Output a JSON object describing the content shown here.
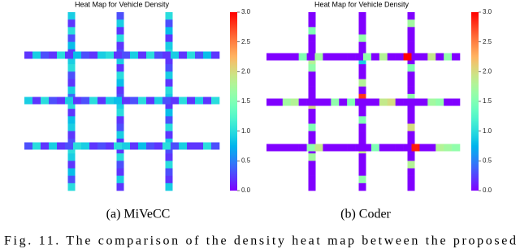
{
  "chart_data": [
    {
      "type": "heatmap",
      "title": "Heat Map for Vehicle Density",
      "caption": "(a) MiVeCC",
      "colormap": "rainbow",
      "zlim": [
        0,
        3
      ],
      "zticks": [
        {
          "value": 0,
          "label": "0.0"
        },
        {
          "value": 0.5,
          "label": "0.5"
        },
        {
          "value": 1,
          "label": "1.0"
        },
        {
          "value": 1.5,
          "label": "1.5"
        },
        {
          "value": 2,
          "label": "2.0"
        },
        {
          "value": 2.5,
          "label": "2.5"
        },
        {
          "value": 3,
          "label": "3.0"
        }
      ],
      "vertical_roads": [
        [
          0.9,
          0.2,
          1.0,
          0.3,
          0.8,
          0.2,
          0.9,
          1.0,
          0.3,
          0.2,
          0.9,
          0.4,
          1.0,
          0.2,
          0.8,
          0.9,
          0.2,
          0.3,
          1.0,
          0.9,
          0.2,
          0.8,
          0.3,
          1.0
        ],
        [
          0.3,
          0.9,
          0.2,
          1.0,
          0.2,
          0.3,
          0.9,
          0.2,
          1.0,
          0.8,
          0.2,
          0.3,
          0.9,
          1.0,
          0.2,
          0.3,
          0.9,
          0.2,
          0.2,
          1.0,
          0.3,
          0.2,
          0.9,
          0.2
        ],
        [
          1.0,
          0.3,
          0.8,
          0.2,
          0.9,
          1.0,
          0.2,
          0.3,
          0.9,
          0.2,
          1.0,
          0.9,
          0.2,
          0.8,
          0.3,
          1.0,
          0.2,
          0.9,
          0.3,
          0.2,
          1.0,
          0.3,
          0.2,
          0.9
        ]
      ],
      "horizontal_roads": [
        [
          0.2,
          0.9,
          0.3,
          0.2,
          1.0,
          0.2,
          0.8,
          0.3,
          0.2,
          0.9,
          1.0,
          0.2,
          0.3,
          0.9,
          0.2,
          1.0,
          0.3,
          0.2,
          0.9,
          0.2,
          1.0,
          0.3,
          0.8,
          0.2
        ],
        [
          0.9,
          0.2,
          1.0,
          0.3,
          0.2,
          0.9,
          0.2,
          0.3,
          1.0,
          0.2,
          0.9,
          0.8,
          0.2,
          0.3,
          1.0,
          0.2,
          0.9,
          0.3,
          0.2,
          1.0,
          0.2,
          0.9,
          0.2,
          1.0
        ],
        [
          0.3,
          1.0,
          0.2,
          0.9,
          0.2,
          0.3,
          1.0,
          0.9,
          0.2,
          0.3,
          0.2,
          1.0,
          0.9,
          0.2,
          0.8,
          0.3,
          0.2,
          1.0,
          0.3,
          0.9,
          0.2,
          0.2,
          1.0,
          0.3
        ]
      ]
    },
    {
      "type": "heatmap",
      "title": "Heat Map for Vehicle Density",
      "caption": "(b) Coder",
      "colormap": "rainbow",
      "zlim": [
        0,
        3
      ],
      "zticks": [
        {
          "value": 0,
          "label": "0.0"
        },
        {
          "value": 0.5,
          "label": "0.5"
        },
        {
          "value": 1,
          "label": "1.0"
        },
        {
          "value": 1.5,
          "label": "1.5"
        },
        {
          "value": 2,
          "label": "2.0"
        },
        {
          "value": 2.5,
          "label": "2.5"
        },
        {
          "value": 3,
          "label": "3.0"
        }
      ],
      "vertical_roads": [
        [
          0,
          0,
          1.5,
          0,
          0,
          0,
          1.8,
          1.6,
          0,
          0,
          0,
          0,
          2.0,
          0,
          0,
          1.5,
          0,
          0,
          0,
          1.7,
          0,
          0,
          0,
          0
        ],
        [
          0,
          0,
          0,
          1.6,
          0,
          0,
          0.9,
          0,
          0,
          1.8,
          0,
          2.8,
          0,
          0,
          1.5,
          0,
          0,
          0,
          1.9,
          0,
          0,
          0,
          1.6,
          0
        ],
        [
          0,
          1.7,
          0,
          0,
          0,
          0,
          0,
          1.5,
          0,
          0,
          0,
          1.6,
          0,
          0,
          0,
          2.0,
          0,
          0,
          0,
          0,
          1.8,
          0,
          0,
          0
        ]
      ],
      "horizontal_roads": [
        [
          0,
          0,
          0,
          0,
          1.5,
          0,
          1.7,
          0,
          0,
          0,
          0,
          0,
          1.6,
          0,
          1.8,
          0,
          0,
          3.0,
          0,
          0,
          1.9,
          0,
          1.6,
          0
        ],
        [
          0,
          0,
          1.7,
          1.8,
          0,
          0,
          0,
          0,
          1.6,
          0,
          1.5,
          0,
          0,
          0,
          1.9,
          2.0,
          0,
          0,
          0,
          0,
          1.7,
          1.6,
          0,
          0
        ],
        [
          0,
          0,
          0,
          0,
          0,
          1.6,
          1.9,
          0,
          0,
          0,
          0,
          0,
          0,
          1.5,
          0,
          0,
          0,
          0,
          2.9,
          0,
          0,
          1.8,
          1.7,
          1.6
        ]
      ]
    }
  ],
  "figure_caption": "Fig. 11.   The comparison of the density heat map between the proposed"
}
